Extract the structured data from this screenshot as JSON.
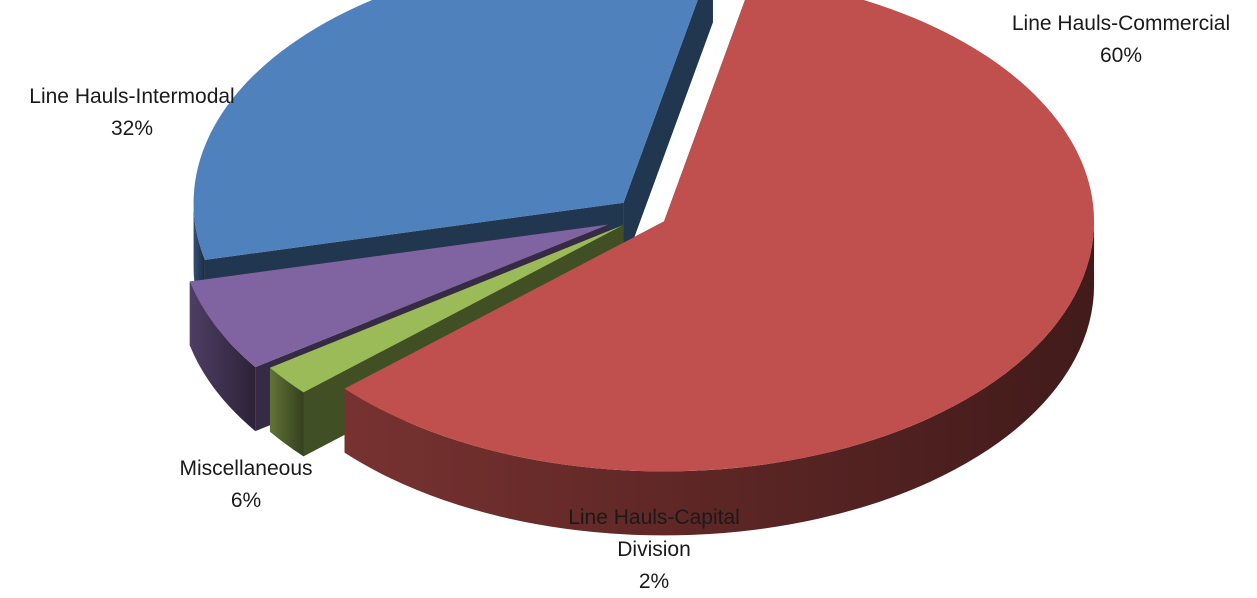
{
  "chart_data": {
    "type": "pie",
    "style": "3d-exploded",
    "title": "",
    "legend": "none",
    "unit": "%",
    "slices": [
      {
        "name": "Line Hauls-Commercial",
        "label_lines": [
          "Line Hauls-Commercial"
        ],
        "percent_label": "60%",
        "value": 60,
        "color": "#C0504D"
      },
      {
        "name": "Line Hauls-Capital Division",
        "label_lines": [
          "Line Hauls-Capital",
          "Division"
        ],
        "percent_label": "2%",
        "value": 2,
        "color": "#9BBB59"
      },
      {
        "name": "Miscellaneous",
        "label_lines": [
          "Miscellaneous"
        ],
        "percent_label": "6%",
        "value": 6,
        "color": "#8064A2"
      },
      {
        "name": "Line Hauls-Intermodal",
        "label_lines": [
          "Line Hauls-Intermodal"
        ],
        "percent_label": "32%",
        "value": 32,
        "color": "#4F81BD"
      }
    ]
  }
}
